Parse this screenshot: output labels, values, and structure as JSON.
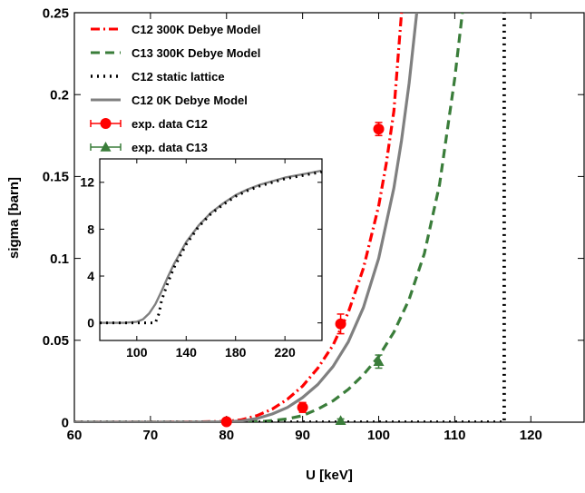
{
  "chart_data": [
    {
      "type": "line",
      "xlabel": "U [keV]",
      "ylabel": "sigma [barn]",
      "xlim": [
        60,
        127
      ],
      "ylim": [
        0,
        0.25
      ],
      "x_ticks": [
        "60",
        "70",
        "80",
        "90",
        "100",
        "110",
        "120"
      ],
      "y_ticks": [
        "0",
        "0.05",
        "0.1",
        "0.15",
        "0.2",
        "0.25"
      ],
      "grid": false,
      "legend_position": "top-left",
      "series": [
        {
          "name": "C12 300K Debye Model",
          "color": "#ff0000",
          "style": "dash-dot",
          "x": [
            60,
            70,
            75,
            80,
            82,
            84,
            86,
            88,
            90,
            92,
            94,
            96,
            98,
            100,
            101,
            102,
            103
          ],
          "y": [
            0,
            0,
            0.0001,
            0.0005,
            0.0015,
            0.004,
            0.008,
            0.014,
            0.022,
            0.033,
            0.047,
            0.067,
            0.094,
            0.132,
            0.158,
            0.19,
            0.25
          ]
        },
        {
          "name": "C13 300K Debye Model",
          "color": "#3a7d3a",
          "style": "dashed",
          "x": [
            60,
            80,
            85,
            88,
            90,
            92,
            94,
            96,
            98,
            100,
            102,
            104,
            106,
            108,
            110,
            111
          ],
          "y": [
            0,
            0,
            0.0005,
            0.002,
            0.004,
            0.008,
            0.013,
            0.02,
            0.029,
            0.04,
            0.055,
            0.075,
            0.103,
            0.145,
            0.21,
            0.25
          ]
        },
        {
          "name": "C12 static lattice",
          "color": "#000000",
          "style": "dotted",
          "x": [
            60,
            116,
            116.5,
            116.5
          ],
          "y": [
            0,
            0,
            0,
            0.25
          ]
        },
        {
          "name": "C12 0K Debye Model",
          "color": "#808080",
          "style": "solid",
          "x": [
            60,
            75,
            80,
            82,
            84,
            86,
            88,
            90,
            92,
            94,
            96,
            98,
            100,
            102,
            103,
            104,
            105
          ],
          "y": [
            0,
            0,
            0.0002,
            0.0008,
            0.0022,
            0.005,
            0.009,
            0.015,
            0.023,
            0.034,
            0.049,
            0.07,
            0.1,
            0.143,
            0.172,
            0.207,
            0.25
          ]
        }
      ],
      "points": [
        {
          "name": "exp. data C12",
          "color": "#ff0000",
          "marker": "circle",
          "x": [
            80,
            90,
            95,
            100
          ],
          "y": [
            0.0003,
            0.009,
            0.06,
            0.179
          ],
          "err": [
            0.0005,
            0.003,
            0.006,
            0.004
          ]
        },
        {
          "name": "exp. data C13",
          "color": "#3a7d3a",
          "marker": "triangle",
          "x": [
            95,
            100
          ],
          "y": [
            0.001,
            0.037
          ],
          "err": [
            0.001,
            0.004
          ]
        }
      ]
    },
    {
      "type": "line",
      "xlim": [
        70,
        250
      ],
      "ylim": [
        -1.5,
        14
      ],
      "x_ticks": [
        "100",
        "140",
        "180",
        "220"
      ],
      "y_ticks": [
        "0",
        "4",
        "8",
        "12"
      ],
      "series": [
        {
          "color": "#808080",
          "style": "solid",
          "x": [
            70,
            90,
            100,
            105,
            110,
            115,
            120,
            125,
            130,
            140,
            150,
            160,
            170,
            180,
            190,
            200,
            210,
            220,
            230,
            240,
            250
          ],
          "y": [
            0,
            0,
            0.1,
            0.3,
            0.8,
            1.6,
            2.7,
            3.9,
            5.0,
            6.9,
            8.3,
            9.4,
            10.2,
            10.9,
            11.4,
            11.8,
            12.1,
            12.4,
            12.6,
            12.8,
            13.0
          ]
        },
        {
          "color": "#000000",
          "style": "dotted",
          "x": [
            70,
            110,
            115,
            118,
            120,
            125,
            130,
            140,
            150,
            160,
            170,
            180,
            190,
            200,
            210,
            220,
            230,
            240,
            250
          ],
          "y": [
            0,
            0,
            0,
            0.8,
            1.9,
            3.4,
            4.7,
            6.7,
            8.2,
            9.3,
            10.1,
            10.8,
            11.3,
            11.7,
            12.0,
            12.3,
            12.5,
            12.7,
            12.9
          ]
        }
      ]
    }
  ]
}
